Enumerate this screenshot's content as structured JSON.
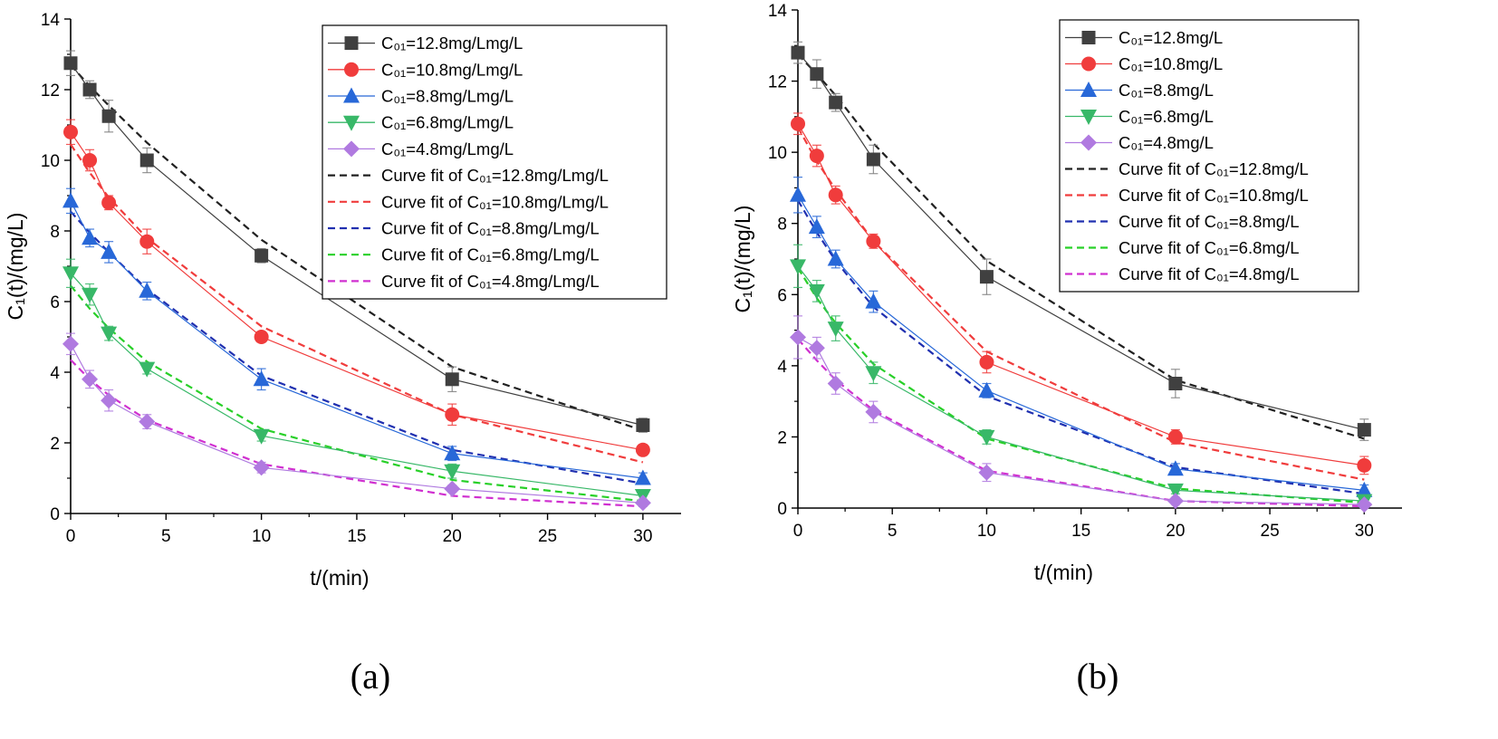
{
  "chart_data": [
    {
      "type": "line",
      "panel_label": "(a)",
      "xlabel": "t/(min)",
      "ylabel": "C₁(t)/(mg/L)",
      "xlim": [
        0,
        32
      ],
      "ylim": [
        0,
        14
      ],
      "xticks": [
        "0",
        "5",
        "10",
        "15",
        "20",
        "25",
        "30"
      ],
      "yticks": [
        "0",
        "2",
        "4",
        "6",
        "8",
        "10",
        "12",
        "14"
      ],
      "grid": false,
      "legend_position": "top-right",
      "x": [
        0,
        1,
        2,
        4,
        10,
        20,
        30
      ],
      "series": [
        {
          "name": "C₀₁=12.8mg/Lmg/L",
          "kind": "measured",
          "marker": "square",
          "color": "#404040",
          "values": [
            12.75,
            12.0,
            11.25,
            10.0,
            7.3,
            3.8,
            2.5
          ],
          "errors": [
            0.35,
            0.25,
            0.45,
            0.35,
            0.2,
            0.35,
            0.2
          ]
        },
        {
          "name": "C₀₁=10.8mg/Lmg/L",
          "kind": "measured",
          "marker": "circle",
          "color": "#f03c3c",
          "values": [
            10.8,
            10.0,
            8.8,
            7.7,
            5.0,
            2.8,
            1.8
          ],
          "errors": [
            0.35,
            0.3,
            0.2,
            0.35,
            0.15,
            0.3,
            0.15
          ]
        },
        {
          "name": "C₀₁=8.8mg/Lmg/L",
          "kind": "measured",
          "marker": "triangle-up",
          "color": "#2868d8",
          "values": [
            8.85,
            7.8,
            7.4,
            6.3,
            3.8,
            1.7,
            1.0
          ],
          "errors": [
            0.35,
            0.25,
            0.3,
            0.25,
            0.3,
            0.2,
            0.15
          ]
        },
        {
          "name": "C₀₁=6.8mg/Lmg/L",
          "kind": "measured",
          "marker": "triangle-down",
          "color": "#38b868",
          "values": [
            6.8,
            6.2,
            5.1,
            4.1,
            2.2,
            1.2,
            0.5
          ],
          "errors": [
            0.4,
            0.3,
            0.2,
            0.15,
            0.15,
            0.2,
            0.1
          ]
        },
        {
          "name": "C₀₁=4.8mg/Lmg/L",
          "kind": "measured",
          "marker": "diamond",
          "color": "#b07ae0",
          "values": [
            4.8,
            3.8,
            3.2,
            2.6,
            1.3,
            0.7,
            0.3
          ],
          "errors": [
            0.3,
            0.25,
            0.3,
            0.2,
            0.15,
            0.1,
            0.1
          ]
        },
        {
          "name": "Curve fit of C₀₁=12.8mg/Lmg/L",
          "kind": "fit",
          "color": "#202020",
          "values": [
            12.7,
            12.1,
            11.55,
            10.5,
            7.75,
            4.15,
            2.35
          ]
        },
        {
          "name": "Curve fit of C₀₁=10.8mg/Lmg/L",
          "kind": "fit",
          "color": "#f03c3c",
          "values": [
            10.45,
            9.65,
            8.95,
            7.8,
            5.3,
            2.8,
            1.45
          ]
        },
        {
          "name": "Curve fit of C₀₁=8.8mg/Lmg/L",
          "kind": "fit",
          "color": "#2030b0",
          "values": [
            8.55,
            7.95,
            7.4,
            6.35,
            3.9,
            1.8,
            0.85
          ]
        },
        {
          "name": "Curve fit of C₀₁=6.8mg/Lmg/L",
          "kind": "fit",
          "color": "#28d028",
          "values": [
            6.45,
            5.8,
            5.25,
            4.3,
            2.4,
            0.95,
            0.35
          ]
        },
        {
          "name": "Curve fit of C₀₁=4.8mg/Lmg/L",
          "kind": "fit",
          "color": "#d030d0",
          "values": [
            4.35,
            3.8,
            3.35,
            2.65,
            1.4,
            0.5,
            0.2
          ]
        }
      ]
    },
    {
      "type": "line",
      "panel_label": "(b)",
      "xlabel": "t/(min)",
      "ylabel": "C₁(t)/(mg/L)",
      "xlim": [
        0,
        32
      ],
      "ylim": [
        0,
        14
      ],
      "xticks": [
        "0",
        "5",
        "10",
        "15",
        "20",
        "25",
        "30"
      ],
      "yticks": [
        "0",
        "2",
        "4",
        "6",
        "8",
        "10",
        "12",
        "14"
      ],
      "grid": false,
      "legend_position": "top-right",
      "x": [
        0,
        1,
        2,
        4,
        10,
        20,
        30
      ],
      "series": [
        {
          "name": "C₀₁=12.8mg/L",
          "kind": "measured",
          "marker": "square",
          "color": "#404040",
          "values": [
            12.8,
            12.2,
            11.4,
            9.8,
            6.5,
            3.5,
            2.2
          ],
          "errors": [
            0.3,
            0.4,
            0.25,
            0.4,
            0.5,
            0.4,
            0.3
          ]
        },
        {
          "name": "C₀₁=10.8mg/L",
          "kind": "measured",
          "marker": "circle",
          "color": "#f03c3c",
          "values": [
            10.8,
            9.9,
            8.8,
            7.5,
            4.1,
            2.0,
            1.2
          ],
          "errors": [
            0.3,
            0.3,
            0.25,
            0.2,
            0.3,
            0.2,
            0.25
          ]
        },
        {
          "name": "C₀₁=8.8mg/L",
          "kind": "measured",
          "marker": "triangle-up",
          "color": "#2868d8",
          "values": [
            8.8,
            7.9,
            7.0,
            5.8,
            3.3,
            1.1,
            0.5
          ],
          "errors": [
            0.5,
            0.3,
            0.25,
            0.3,
            0.2,
            0.15,
            0.15
          ]
        },
        {
          "name": "C₀₁=6.8mg/L",
          "kind": "measured",
          "marker": "triangle-down",
          "color": "#38b868",
          "values": [
            6.8,
            6.1,
            5.05,
            3.8,
            2.0,
            0.5,
            0.2
          ],
          "errors": [
            0.6,
            0.3,
            0.35,
            0.3,
            0.2,
            0.1,
            0.1
          ]
        },
        {
          "name": "C₀₁=4.8mg/L",
          "kind": "measured",
          "marker": "diamond",
          "color": "#b07ae0",
          "values": [
            4.8,
            4.5,
            3.5,
            2.7,
            1.0,
            0.2,
            0.1
          ],
          "errors": [
            0.6,
            0.3,
            0.3,
            0.3,
            0.25,
            0.1,
            0.05
          ]
        },
        {
          "name": "Curve fit of C₀₁=12.8mg/L",
          "kind": "fit",
          "color": "#202020",
          "values": [
            12.75,
            12.2,
            11.6,
            10.25,
            6.95,
            3.6,
            1.95
          ]
        },
        {
          "name": "Curve fit of C₀₁=10.8mg/L",
          "kind": "fit",
          "color": "#f03c3c",
          "values": [
            10.7,
            9.75,
            8.95,
            7.5,
            4.4,
            1.85,
            0.8
          ]
        },
        {
          "name": "Curve fit of C₀₁=8.8mg/L",
          "kind": "fit",
          "color": "#2030b0",
          "values": [
            8.65,
            7.75,
            6.95,
            5.65,
            3.15,
            1.15,
            0.4
          ]
        },
        {
          "name": "Curve fit of C₀₁=6.8mg/L",
          "kind": "fit",
          "color": "#28d028",
          "values": [
            6.75,
            5.9,
            5.2,
            4.05,
            1.95,
            0.55,
            0.15
          ]
        },
        {
          "name": "Curve fit of C₀₁=4.8mg/L",
          "kind": "fit",
          "color": "#d030d0",
          "values": [
            4.75,
            4.15,
            3.6,
            2.75,
            1.05,
            0.2,
            0.05
          ]
        }
      ]
    }
  ]
}
